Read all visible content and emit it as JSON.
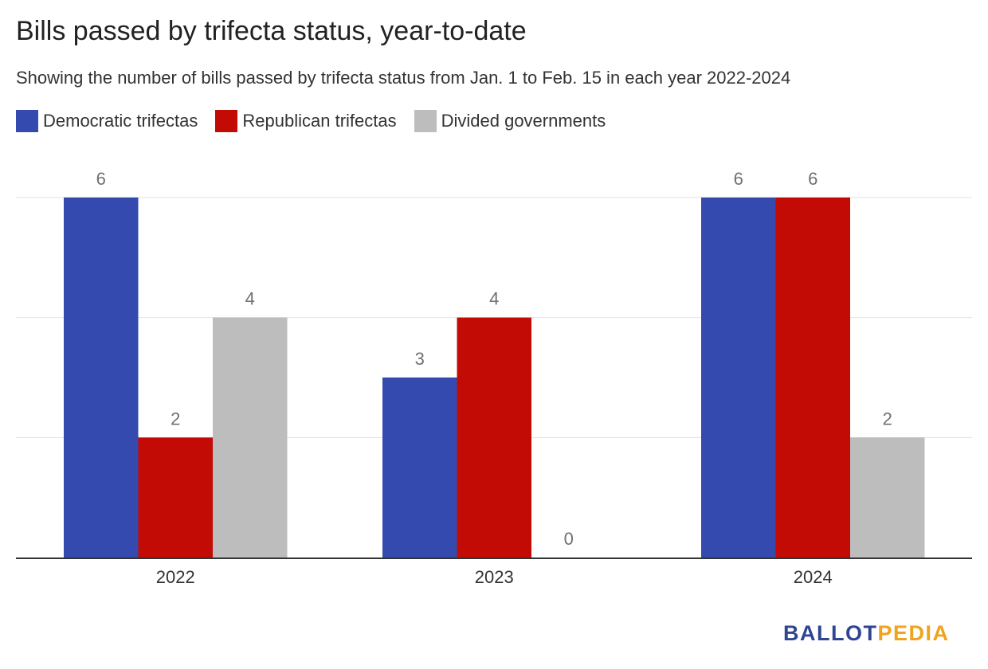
{
  "title": "Bills passed by trifecta status, year-to-date",
  "subtitle": "Showing the number of bills passed by trifecta status from Jan. 1 to Feb. 15 in each year 2022-2024",
  "legend": [
    {
      "label": "Democratic trifectas",
      "color": "#344aae"
    },
    {
      "label": "Republican trifectas",
      "color": "#c30b05"
    },
    {
      "label": "Divided governments",
      "color": "#bdbdbd"
    }
  ],
  "logo": {
    "part1": "BALLOT",
    "part2": "PEDIA"
  },
  "chart_data": {
    "type": "bar",
    "categories": [
      "2022",
      "2023",
      "2024"
    ],
    "series": [
      {
        "name": "Democratic trifectas",
        "color": "#344aae",
        "values": [
          6,
          3,
          6
        ]
      },
      {
        "name": "Republican trifectas",
        "color": "#c30b05",
        "values": [
          2,
          4,
          6
        ]
      },
      {
        "name": "Divided governments",
        "color": "#bdbdbd",
        "values": [
          4,
          0,
          2
        ]
      }
    ],
    "ylim": [
      0,
      6
    ],
    "gridlines": [
      2,
      4,
      6
    ],
    "grid": true,
    "legend_position": "top-left",
    "data_labels": true
  }
}
